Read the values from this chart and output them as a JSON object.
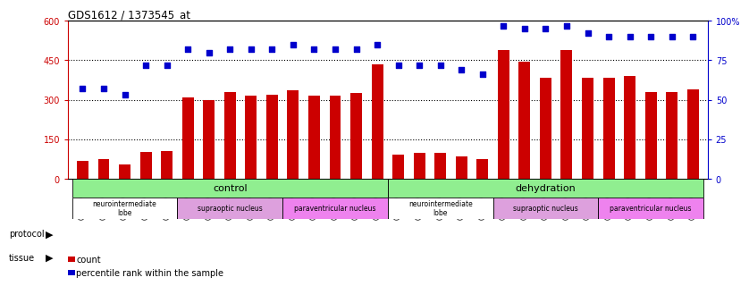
{
  "title": "GDS1612 / 1373545_at",
  "samples": [
    "GSM69787",
    "GSM69788",
    "GSM69789",
    "GSM69790",
    "GSM69791",
    "GSM69461",
    "GSM69462",
    "GSM69463",
    "GSM69464",
    "GSM69465",
    "GSM69475",
    "GSM69476",
    "GSM69477",
    "GSM69478",
    "GSM69479",
    "GSM69782",
    "GSM69783",
    "GSM69784",
    "GSM69785",
    "GSM69786",
    "GSM69268",
    "GSM69457",
    "GSM69458",
    "GSM69459",
    "GSM69460",
    "GSM69470",
    "GSM69471",
    "GSM69472",
    "GSM69473",
    "GSM69474"
  ],
  "counts": [
    68,
    75,
    55,
    100,
    105,
    310,
    300,
    330,
    315,
    320,
    335,
    315,
    315,
    325,
    435,
    90,
    98,
    98,
    85,
    75,
    490,
    445,
    385,
    490,
    385,
    385,
    390,
    330,
    330,
    340
  ],
  "percentiles": [
    57,
    57,
    53,
    72,
    72,
    82,
    80,
    82,
    82,
    82,
    85,
    82,
    82,
    82,
    85,
    72,
    72,
    72,
    69,
    66,
    97,
    95,
    95,
    97,
    92,
    90,
    90,
    90,
    90,
    90
  ],
  "bar_color": "#cc0000",
  "dot_color": "#0000cc",
  "left_ylim": [
    0,
    600
  ],
  "right_ylim": [
    0,
    100
  ],
  "left_yticks": [
    0,
    150,
    300,
    450,
    600
  ],
  "right_yticks": [
    0,
    25,
    50,
    75,
    100
  ],
  "right_yticklabels": [
    "0",
    "25",
    "50",
    "75",
    "100%"
  ],
  "protocol_groups": [
    {
      "label": "control",
      "start": 0,
      "end": 14
    },
    {
      "label": "dehydration",
      "start": 15,
      "end": 29
    }
  ],
  "tissue_groups": [
    {
      "label": "neurointermediate\nlobe",
      "start": 0,
      "end": 4,
      "color": "#ffffff"
    },
    {
      "label": "supraoptic nucleus",
      "start": 5,
      "end": 9,
      "color": "#dda0dd"
    },
    {
      "label": "paraventricular nucleus",
      "start": 10,
      "end": 14,
      "color": "#ee82ee"
    },
    {
      "label": "neurointermediate\nlobe",
      "start": 15,
      "end": 19,
      "color": "#ffffff"
    },
    {
      "label": "supraoptic nucleus",
      "start": 20,
      "end": 24,
      "color": "#dda0dd"
    },
    {
      "label": "paraventricular nucleus",
      "start": 25,
      "end": 29,
      "color": "#ee82ee"
    }
  ],
  "protocol_color": "#90ee90",
  "background": "#ffffff",
  "protocol_label": "protocol",
  "tissue_label": "tissue",
  "legend_count": "count",
  "legend_pct": "percentile rank within the sample"
}
